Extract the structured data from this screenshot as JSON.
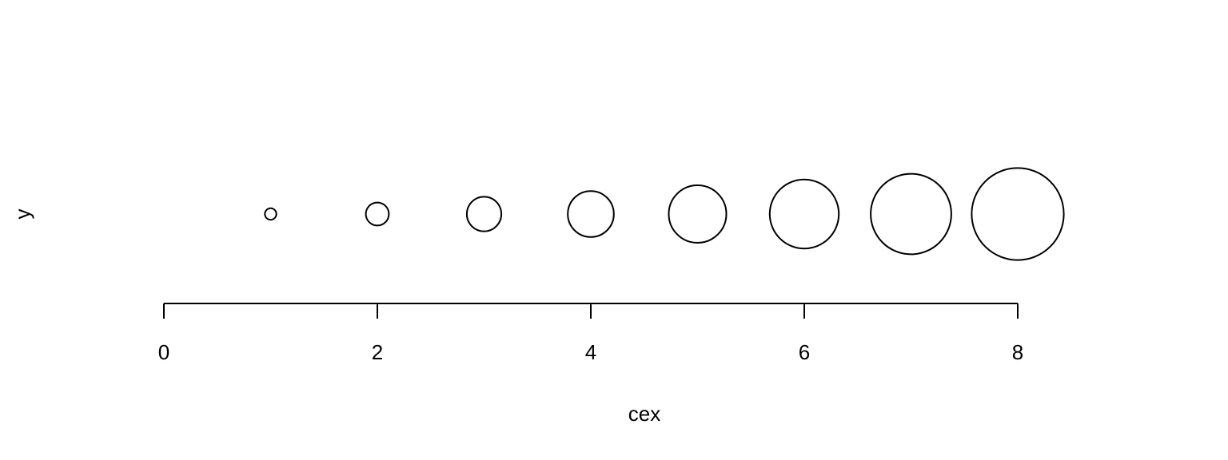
{
  "chart_data": {
    "type": "scatter",
    "title": "",
    "xlabel": "cex",
    "ylabel": "y",
    "xlim": [
      0,
      8
    ],
    "x_ticks": [
      "0",
      "2",
      "4",
      "6",
      "8"
    ],
    "grid": false,
    "marker": "open-circle",
    "points": [
      {
        "x": 1,
        "cex": 1
      },
      {
        "x": 2,
        "cex": 2
      },
      {
        "x": 3,
        "cex": 3
      },
      {
        "x": 4,
        "cex": 4
      },
      {
        "x": 5,
        "cex": 5
      },
      {
        "x": 6,
        "cex": 6
      },
      {
        "x": 7,
        "cex": 7
      },
      {
        "x": 8,
        "cex": 8
      }
    ],
    "color": "#000000"
  }
}
